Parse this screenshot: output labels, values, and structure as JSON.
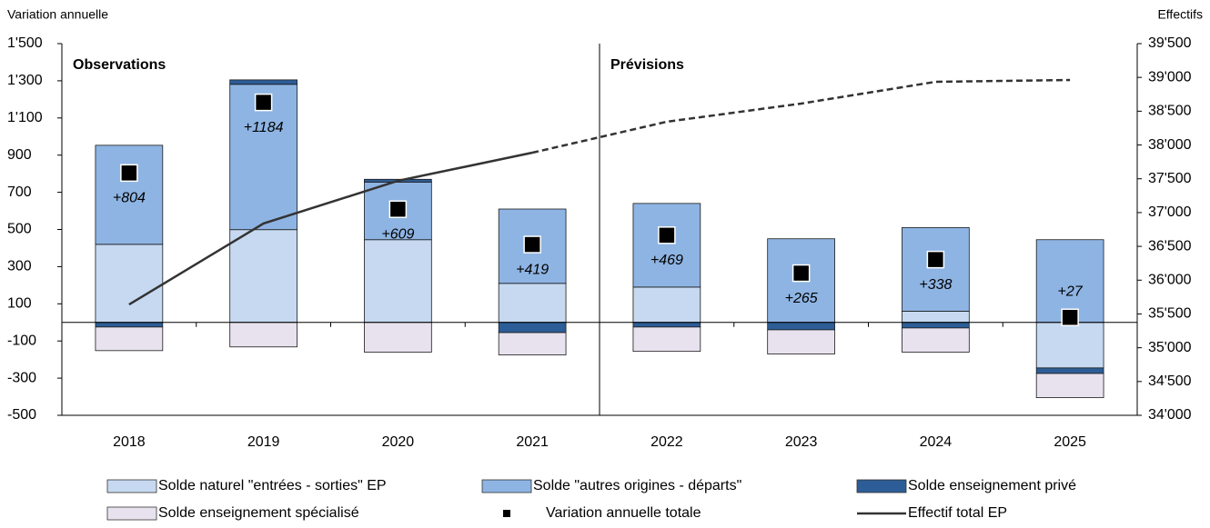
{
  "chart_data": {
    "type": "bar",
    "stacked": true,
    "y_label": "Variation annuelle",
    "y2_label": "Effectifs",
    "categories": [
      "2018",
      "2019",
      "2020",
      "2021",
      "2022",
      "2023",
      "2024",
      "2025"
    ],
    "sections": [
      {
        "label": "Observations",
        "first": "2018",
        "last": "2021"
      },
      {
        "label": "Prévisions",
        "first": "2022",
        "last": "2025"
      }
    ],
    "series": [
      {
        "name": "Solde naturel \"entrées - sorties\" EP",
        "color": "#c6d9f1",
        "values": [
          420,
          499,
          445,
          210,
          190,
          0,
          60,
          -245
        ]
      },
      {
        "name": "Solde \"autres origines - départs\"",
        "color": "#8eb4e3",
        "values": [
          533,
          782,
          310,
          400,
          450,
          450,
          450,
          445
        ]
      },
      {
        "name": "Solde enseignement privé",
        "color": "#2d5d96",
        "values": [
          -25,
          24,
          15,
          -55,
          -25,
          -40,
          -30,
          -30
        ]
      },
      {
        "name": "Solde enseignement spécialisé",
        "color": "#e8e2ee",
        "values": [
          -127,
          -132,
          -160,
          -120,
          -131,
          -130,
          -130,
          -130
        ]
      },
      {
        "name": "Variation annuelle totale",
        "type": "scatter",
        "color": "#000000",
        "values": [
          804,
          1184,
          609,
          419,
          469,
          265,
          338,
          27
        ],
        "value_labels": [
          "+804",
          "+1184",
          "+609",
          "+419",
          "+469",
          "+265",
          "+338",
          "+27"
        ]
      },
      {
        "name": "Effectif total EP",
        "type": "line",
        "axis": "y2",
        "color": "#333333",
        "values": [
          35640,
          36838,
          37470,
          37886,
          38344,
          38613,
          38935,
          38962
        ]
      }
    ],
    "ylim": [
      -500,
      1500
    ],
    "yticks": [
      -500,
      -300,
      -100,
      100,
      300,
      500,
      700,
      900,
      {
        "value": 1100,
        "label": "1'100"
      },
      {
        "value": 1300,
        "label": "1'300"
      },
      {
        "value": 1500,
        "label": "1'500"
      }
    ],
    "y2lim": [
      34000,
      39500
    ],
    "y2ticks": [
      {
        "value": 34000,
        "label": "34'000"
      },
      {
        "value": 34500,
        "label": "34'500"
      },
      {
        "value": 35000,
        "label": "35'000"
      },
      {
        "value": 35500,
        "label": "35'500"
      },
      {
        "value": 36000,
        "label": "36'000"
      },
      {
        "value": 36500,
        "label": "36'500"
      },
      {
        "value": 37000,
        "label": "37'000"
      },
      {
        "value": 37500,
        "label": "37'500"
      },
      {
        "value": 38000,
        "label": "38'000"
      },
      {
        "value": 38500,
        "label": "38'500"
      },
      {
        "value": 39000,
        "label": "39'000"
      },
      {
        "value": 39500,
        "label": "39'500"
      }
    ]
  }
}
